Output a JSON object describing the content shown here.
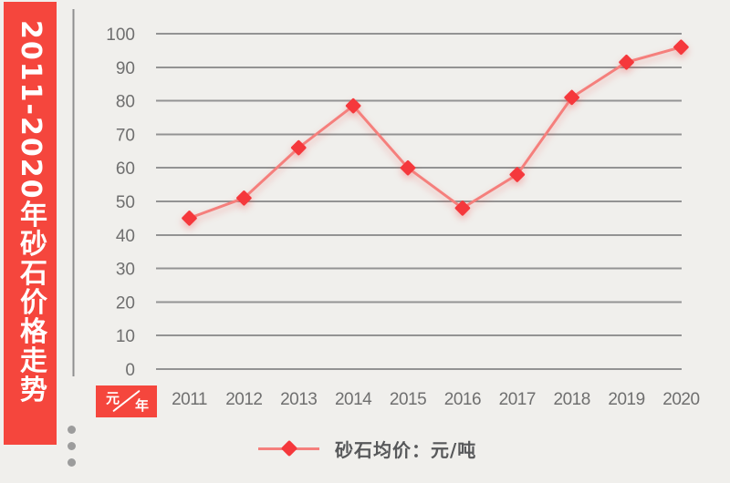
{
  "banner": {
    "title": "2011-2020年砂石价格走势"
  },
  "axis_unit": {
    "numerator": "元",
    "denominator": "年"
  },
  "legend": {
    "label": "砂石均价：元/吨"
  },
  "decor": {
    "side_dots": 3
  },
  "colors": {
    "background": "#f0efec",
    "banner": "#f5463d",
    "marker": "#f5383c",
    "line": "#f57f7c",
    "grid": "#939393",
    "axis": "#8f8f8f",
    "tick_label": "#6f6f6f",
    "legend_text": "#57585a",
    "dot": "#9c9c9c"
  },
  "chart_data": {
    "type": "line",
    "title": "2011-2020年砂石价格走势",
    "x": [
      "2011",
      "2012",
      "2013",
      "2014",
      "2015",
      "2016",
      "2017",
      "2018",
      "2019",
      "2020"
    ],
    "series": [
      {
        "name": "砂石均价：元/吨",
        "values": [
          45,
          51,
          66,
          78.5,
          60,
          48,
          58,
          81,
          91.5,
          96
        ]
      }
    ],
    "xlabel": "年",
    "ylabel": "元",
    "ylim": [
      0,
      100
    ],
    "ytick_step": 10,
    "yticks": [
      0,
      10,
      20,
      30,
      40,
      50,
      60,
      70,
      80,
      90,
      100
    ],
    "grid": true,
    "marker": "diamond",
    "legend_position": "bottom"
  }
}
